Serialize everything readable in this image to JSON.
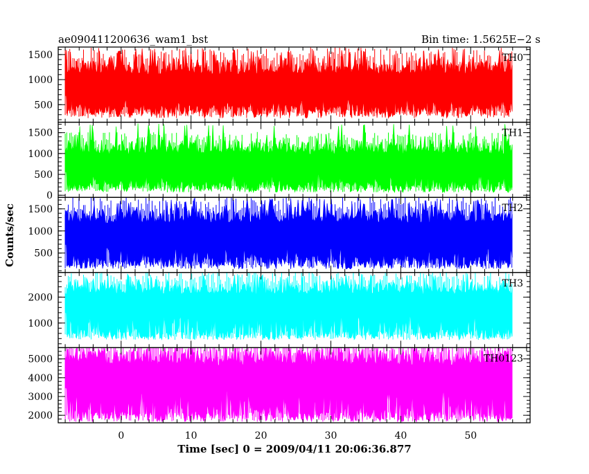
{
  "chart_data": {
    "type": "line",
    "title_left": "ae090411200636_wam1_bst",
    "title_right": "Bin time: 1.5625E−2 s",
    "xlabel": "Time [sec] 0 = 2009/04/11 20:06:36.877",
    "ylabel": "Counts/sec",
    "xlim": [
      -9.0,
      58.5
    ],
    "x_data_range": [
      -8.0,
      56.0
    ],
    "xticks": [
      0,
      10,
      20,
      30,
      40,
      50
    ],
    "grid": false,
    "panels": [
      {
        "name": "TH0",
        "color": "#ff0000",
        "ylim": [
          150,
          1650
        ],
        "yticks": [
          500,
          1000,
          1500
        ],
        "base": 230,
        "center": 800,
        "spread": 300,
        "peak": 1620
      },
      {
        "name": "TH1",
        "color": "#00ff00",
        "ylim": [
          -50,
          1750
        ],
        "yticks": [
          0,
          500,
          1000,
          1500
        ],
        "base": 70,
        "center": 680,
        "spread": 300,
        "peak": 1720
      },
      {
        "name": "TH2",
        "color": "#0000ff",
        "ylim": [
          60,
          1760
        ],
        "yticks": [
          500,
          1000,
          1500
        ],
        "base": 140,
        "center": 830,
        "spread": 340,
        "peak": 1740
      },
      {
        "name": "TH3",
        "color": "#00ffff",
        "ylim": [
          50,
          2950
        ],
        "yticks": [
          1000,
          2000
        ],
        "base": 350,
        "center": 1600,
        "spread": 500,
        "peak": 2900
      },
      {
        "name": "TH0123",
        "color": "#ff00ff",
        "ylim": [
          1600,
          5600
        ],
        "yticks": [
          2000,
          3000,
          4000,
          5000
        ],
        "base": 1650,
        "center": 3800,
        "spread": 850,
        "peak": 5500
      }
    ]
  }
}
